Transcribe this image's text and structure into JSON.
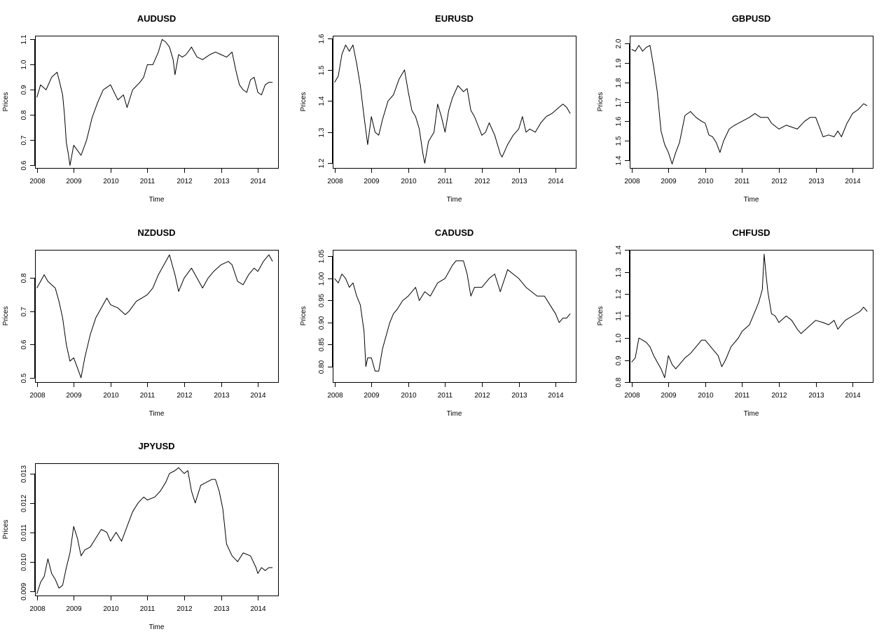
{
  "chart_data": [
    {
      "type": "line",
      "title": "AUDUSD",
      "xlabel": "Time",
      "ylabel": "Prices",
      "xlim": [
        2007.95,
        2014.55
      ],
      "ylim": [
        0.59,
        1.115
      ],
      "x_ticks": [
        2008,
        2009,
        2010,
        2011,
        2012,
        2013,
        2014
      ],
      "y_ticks": [
        0.6,
        0.7,
        0.8,
        0.9,
        1.0,
        1.1
      ],
      "y_tick_labels": [
        "0.6",
        "0.7",
        "0.8",
        "0.9",
        "1.0",
        "1.1"
      ],
      "grid": false,
      "x": [
        2008.0,
        2008.1,
        2008.25,
        2008.4,
        2008.55,
        2008.62,
        2008.7,
        2008.75,
        2008.8,
        2008.85,
        2008.9,
        2009.0,
        2009.1,
        2009.2,
        2009.35,
        2009.5,
        2009.65,
        2009.8,
        2009.9,
        2010.0,
        2010.2,
        2010.35,
        2010.45,
        2010.6,
        2010.8,
        2010.9,
        2011.0,
        2011.15,
        2011.3,
        2011.4,
        2011.5,
        2011.6,
        2011.7,
        2011.75,
        2011.85,
        2011.95,
        2012.05,
        2012.2,
        2012.35,
        2012.5,
        2012.6,
        2012.7,
        2012.85,
        2013.0,
        2013.15,
        2013.3,
        2013.4,
        2013.5,
        2013.6,
        2013.7,
        2013.8,
        2013.9,
        2014.0,
        2014.1,
        2014.2,
        2014.3,
        2014.4
      ],
      "values": [
        0.87,
        0.92,
        0.9,
        0.95,
        0.97,
        0.93,
        0.88,
        0.8,
        0.69,
        0.65,
        0.6,
        0.68,
        0.66,
        0.64,
        0.7,
        0.79,
        0.85,
        0.9,
        0.91,
        0.92,
        0.86,
        0.88,
        0.83,
        0.9,
        0.93,
        0.95,
        1.0,
        1.0,
        1.05,
        1.1,
        1.09,
        1.07,
        1.02,
        0.96,
        1.04,
        1.03,
        1.04,
        1.07,
        1.03,
        1.02,
        1.03,
        1.04,
        1.05,
        1.04,
        1.03,
        1.05,
        0.98,
        0.92,
        0.9,
        0.89,
        0.94,
        0.95,
        0.89,
        0.88,
        0.92,
        0.93,
        0.93
      ]
    },
    {
      "type": "line",
      "title": "EURUSD",
      "xlabel": "Time",
      "ylabel": "Prices",
      "xlim": [
        2007.95,
        2014.55
      ],
      "ylim": [
        1.185,
        1.61
      ],
      "x_ticks": [
        2008,
        2009,
        2010,
        2011,
        2012,
        2013,
        2014
      ],
      "y_ticks": [
        1.2,
        1.3,
        1.4,
        1.5,
        1.6
      ],
      "y_tick_labels": [
        "1.2",
        "1.3",
        "1.4",
        "1.5",
        "1.6"
      ],
      "grid": false,
      "x": [
        2008.0,
        2008.1,
        2008.2,
        2008.3,
        2008.4,
        2008.5,
        2008.6,
        2008.7,
        2008.8,
        2008.9,
        2009.0,
        2009.1,
        2009.2,
        2009.3,
        2009.45,
        2009.6,
        2009.75,
        2009.9,
        2010.0,
        2010.1,
        2010.2,
        2010.3,
        2010.4,
        2010.45,
        2010.55,
        2010.7,
        2010.8,
        2010.9,
        2011.0,
        2011.1,
        2011.2,
        2011.35,
        2011.5,
        2011.6,
        2011.7,
        2011.8,
        2011.9,
        2012.0,
        2012.1,
        2012.2,
        2012.35,
        2012.5,
        2012.55,
        2012.7,
        2012.85,
        2013.0,
        2013.1,
        2013.2,
        2013.3,
        2013.45,
        2013.6,
        2013.75,
        2013.9,
        2014.0,
        2014.1,
        2014.2,
        2014.3,
        2014.4
      ],
      "values": [
        1.46,
        1.48,
        1.55,
        1.58,
        1.56,
        1.58,
        1.52,
        1.45,
        1.35,
        1.26,
        1.35,
        1.3,
        1.29,
        1.34,
        1.4,
        1.42,
        1.47,
        1.5,
        1.43,
        1.37,
        1.35,
        1.31,
        1.23,
        1.2,
        1.27,
        1.3,
        1.39,
        1.35,
        1.3,
        1.37,
        1.41,
        1.45,
        1.43,
        1.44,
        1.37,
        1.35,
        1.32,
        1.29,
        1.3,
        1.33,
        1.29,
        1.23,
        1.22,
        1.26,
        1.29,
        1.31,
        1.35,
        1.3,
        1.31,
        1.3,
        1.33,
        1.35,
        1.36,
        1.37,
        1.38,
        1.39,
        1.38,
        1.36
      ]
    },
    {
      "type": "line",
      "title": "GBPUSD",
      "xlabel": "Time",
      "ylabel": "Prices",
      "xlim": [
        2007.95,
        2014.55
      ],
      "ylim": [
        1.36,
        2.04
      ],
      "x_ticks": [
        2008,
        2009,
        2010,
        2011,
        2012,
        2013,
        2014
      ],
      "y_ticks": [
        1.4,
        1.5,
        1.6,
        1.7,
        1.8,
        1.9,
        2.0
      ],
      "y_tick_labels": [
        "1.4",
        "1.5",
        "1.6",
        "1.7",
        "1.8",
        "1.9",
        "2.0"
      ],
      "grid": false,
      "x": [
        2008.0,
        2008.1,
        2008.2,
        2008.3,
        2008.4,
        2008.5,
        2008.6,
        2008.7,
        2008.8,
        2008.9,
        2009.0,
        2009.1,
        2009.2,
        2009.3,
        2009.45,
        2009.6,
        2009.75,
        2009.9,
        2010.0,
        2010.1,
        2010.2,
        2010.3,
        2010.4,
        2010.5,
        2010.65,
        2010.8,
        2011.0,
        2011.2,
        2011.35,
        2011.5,
        2011.7,
        2011.8,
        2012.0,
        2012.2,
        2012.35,
        2012.5,
        2012.7,
        2012.85,
        2013.0,
        2013.1,
        2013.2,
        2013.35,
        2013.5,
        2013.6,
        2013.7,
        2013.85,
        2014.0,
        2014.15,
        2014.3,
        2014.4
      ],
      "values": [
        1.97,
        1.96,
        1.99,
        1.96,
        1.98,
        1.99,
        1.88,
        1.75,
        1.55,
        1.48,
        1.44,
        1.38,
        1.44,
        1.49,
        1.63,
        1.65,
        1.62,
        1.6,
        1.59,
        1.53,
        1.52,
        1.49,
        1.44,
        1.5,
        1.56,
        1.58,
        1.6,
        1.62,
        1.64,
        1.62,
        1.62,
        1.59,
        1.56,
        1.58,
        1.57,
        1.56,
        1.6,
        1.62,
        1.62,
        1.57,
        1.52,
        1.53,
        1.52,
        1.55,
        1.52,
        1.59,
        1.64,
        1.66,
        1.69,
        1.68
      ]
    },
    {
      "type": "line",
      "title": "NZDUSD",
      "xlabel": "Time",
      "ylabel": "Prices",
      "xlim": [
        2007.95,
        2014.55
      ],
      "ylim": [
        0.487,
        0.885
      ],
      "x_ticks": [
        2008,
        2009,
        2010,
        2011,
        2012,
        2013,
        2014
      ],
      "y_ticks": [
        0.5,
        0.6,
        0.7,
        0.8
      ],
      "y_tick_labels": [
        "0.5",
        "0.6",
        "0.7",
        "0.8"
      ],
      "grid": false,
      "x": [
        2008.0,
        2008.1,
        2008.2,
        2008.3,
        2008.4,
        2008.5,
        2008.6,
        2008.7,
        2008.8,
        2008.9,
        2009.0,
        2009.1,
        2009.2,
        2009.3,
        2009.45,
        2009.6,
        2009.75,
        2009.9,
        2010.0,
        2010.2,
        2010.4,
        2010.5,
        2010.7,
        2010.85,
        2011.0,
        2011.15,
        2011.3,
        2011.45,
        2011.55,
        2011.6,
        2011.75,
        2011.85,
        2012.0,
        2012.2,
        2012.35,
        2012.5,
        2012.65,
        2012.8,
        2013.0,
        2013.2,
        2013.3,
        2013.45,
        2013.6,
        2013.75,
        2013.9,
        2014.0,
        2014.15,
        2014.3,
        2014.4
      ],
      "values": [
        0.77,
        0.79,
        0.81,
        0.79,
        0.78,
        0.77,
        0.73,
        0.68,
        0.6,
        0.55,
        0.56,
        0.53,
        0.5,
        0.56,
        0.63,
        0.68,
        0.71,
        0.74,
        0.72,
        0.71,
        0.69,
        0.7,
        0.73,
        0.74,
        0.75,
        0.77,
        0.81,
        0.84,
        0.86,
        0.87,
        0.81,
        0.76,
        0.8,
        0.83,
        0.8,
        0.77,
        0.8,
        0.82,
        0.84,
        0.85,
        0.84,
        0.79,
        0.78,
        0.81,
        0.83,
        0.82,
        0.85,
        0.87,
        0.85
      ]
    },
    {
      "type": "line",
      "title": "CADUSD",
      "xlabel": "Time",
      "ylabel": "Prices",
      "xlim": [
        2007.95,
        2014.55
      ],
      "ylim": [
        0.765,
        1.065
      ],
      "x_ticks": [
        2008,
        2009,
        2010,
        2011,
        2012,
        2013,
        2014
      ],
      "y_ticks": [
        0.8,
        0.85,
        0.9,
        0.95,
        1.0,
        1.05
      ],
      "y_tick_labels": [
        "0.80",
        "0.85",
        "0.90",
        "0.95",
        "1.00",
        "1.05"
      ],
      "grid": false,
      "x": [
        2008.0,
        2008.1,
        2008.2,
        2008.3,
        2008.4,
        2008.5,
        2008.6,
        2008.7,
        2008.8,
        2008.85,
        2008.9,
        2009.0,
        2009.1,
        2009.2,
        2009.3,
        2009.4,
        2009.5,
        2009.6,
        2009.7,
        2009.85,
        2010.0,
        2010.2,
        2010.3,
        2010.45,
        2010.6,
        2010.8,
        2011.0,
        2011.2,
        2011.3,
        2011.5,
        2011.6,
        2011.7,
        2011.8,
        2012.0,
        2012.2,
        2012.35,
        2012.5,
        2012.7,
        2012.85,
        2013.0,
        2013.2,
        2013.35,
        2013.5,
        2013.7,
        2013.85,
        2014.0,
        2014.1,
        2014.2,
        2014.3,
        2014.4
      ],
      "values": [
        1.0,
        0.99,
        1.01,
        1.0,
        0.98,
        0.99,
        0.96,
        0.94,
        0.88,
        0.8,
        0.82,
        0.82,
        0.79,
        0.79,
        0.84,
        0.87,
        0.9,
        0.92,
        0.93,
        0.95,
        0.96,
        0.98,
        0.95,
        0.97,
        0.96,
        0.99,
        1.0,
        1.03,
        1.04,
        1.04,
        1.01,
        0.96,
        0.98,
        0.98,
        1.0,
        1.01,
        0.97,
        1.02,
        1.01,
        1.0,
        0.98,
        0.97,
        0.96,
        0.96,
        0.94,
        0.92,
        0.9,
        0.91,
        0.91,
        0.92
      ]
    },
    {
      "type": "line",
      "title": "CHFUSD",
      "xlabel": "Time",
      "ylabel": "Prices",
      "xlim": [
        2007.95,
        2014.55
      ],
      "ylim": [
        0.8,
        1.4
      ],
      "x_ticks": [
        2008,
        2009,
        2010,
        2011,
        2012,
        2013,
        2014
      ],
      "y_ticks": [
        0.8,
        0.9,
        1.0,
        1.1,
        1.2,
        1.3,
        1.4
      ],
      "y_tick_labels": [
        "0.8",
        "0.9",
        "1.0",
        "1.1",
        "1.2",
        "1.3",
        "1.4"
      ],
      "grid": false,
      "x": [
        2008.0,
        2008.1,
        2008.2,
        2008.3,
        2008.4,
        2008.5,
        2008.6,
        2008.7,
        2008.8,
        2008.9,
        2009.0,
        2009.1,
        2009.2,
        2009.3,
        2009.45,
        2009.6,
        2009.8,
        2009.9,
        2010.0,
        2010.2,
        2010.35,
        2010.45,
        2010.55,
        2010.7,
        2010.9,
        2011.0,
        2011.2,
        2011.35,
        2011.45,
        2011.55,
        2011.6,
        2011.65,
        2011.7,
        2011.8,
        2011.9,
        2012.0,
        2012.2,
        2012.35,
        2012.5,
        2012.6,
        2012.8,
        2013.0,
        2013.2,
        2013.35,
        2013.5,
        2013.6,
        2013.8,
        2014.0,
        2014.2,
        2014.3,
        2014.4
      ],
      "values": [
        0.89,
        0.91,
        1.0,
        0.99,
        0.98,
        0.96,
        0.92,
        0.89,
        0.86,
        0.82,
        0.92,
        0.88,
        0.86,
        0.88,
        0.91,
        0.93,
        0.97,
        0.99,
        0.99,
        0.95,
        0.92,
        0.87,
        0.9,
        0.96,
        1.0,
        1.03,
        1.06,
        1.12,
        1.16,
        1.22,
        1.38,
        1.29,
        1.21,
        1.11,
        1.1,
        1.07,
        1.1,
        1.08,
        1.04,
        1.02,
        1.05,
        1.08,
        1.07,
        1.06,
        1.08,
        1.04,
        1.08,
        1.1,
        1.12,
        1.14,
        1.12
      ]
    },
    {
      "type": "line",
      "title": "JPYUSD",
      "xlabel": "Time",
      "ylabel": "Prices",
      "xlim": [
        2007.95,
        2014.55
      ],
      "ylim": [
        0.00885,
        0.01335
      ],
      "x_ticks": [
        2008,
        2009,
        2010,
        2011,
        2012,
        2013,
        2014
      ],
      "y_ticks": [
        0.009,
        0.01,
        0.011,
        0.012,
        0.013
      ],
      "y_tick_labels": [
        "0.009",
        "0.010",
        "0.011",
        "0.012",
        "0.013"
      ],
      "grid": false,
      "x": [
        2008.0,
        2008.1,
        2008.2,
        2008.3,
        2008.4,
        2008.5,
        2008.6,
        2008.7,
        2008.8,
        2008.9,
        2009.0,
        2009.1,
        2009.2,
        2009.3,
        2009.45,
        2009.6,
        2009.75,
        2009.9,
        2010.0,
        2010.15,
        2010.3,
        2010.45,
        2010.6,
        2010.75,
        2010.9,
        2011.0,
        2011.2,
        2011.35,
        2011.5,
        2011.6,
        2011.75,
        2011.85,
        2012.0,
        2012.1,
        2012.2,
        2012.3,
        2012.45,
        2012.6,
        2012.75,
        2012.85,
        2012.95,
        2013.05,
        2013.15,
        2013.3,
        2013.45,
        2013.6,
        2013.8,
        2013.95,
        2014.0,
        2014.1,
        2014.2,
        2014.3,
        2014.4
      ],
      "values": [
        0.0089,
        0.0093,
        0.0095,
        0.0101,
        0.0096,
        0.0094,
        0.0091,
        0.0092,
        0.0098,
        0.0103,
        0.0112,
        0.0108,
        0.0102,
        0.0104,
        0.0105,
        0.0108,
        0.0111,
        0.011,
        0.0107,
        0.011,
        0.0107,
        0.0112,
        0.0117,
        0.012,
        0.0122,
        0.0121,
        0.0122,
        0.0124,
        0.0127,
        0.013,
        0.0131,
        0.0132,
        0.013,
        0.0131,
        0.0124,
        0.012,
        0.0126,
        0.0127,
        0.0128,
        0.0128,
        0.0124,
        0.0118,
        0.0106,
        0.0102,
        0.01,
        0.0103,
        0.0102,
        0.0098,
        0.0096,
        0.0098,
        0.0097,
        0.0098,
        0.0098
      ]
    }
  ]
}
